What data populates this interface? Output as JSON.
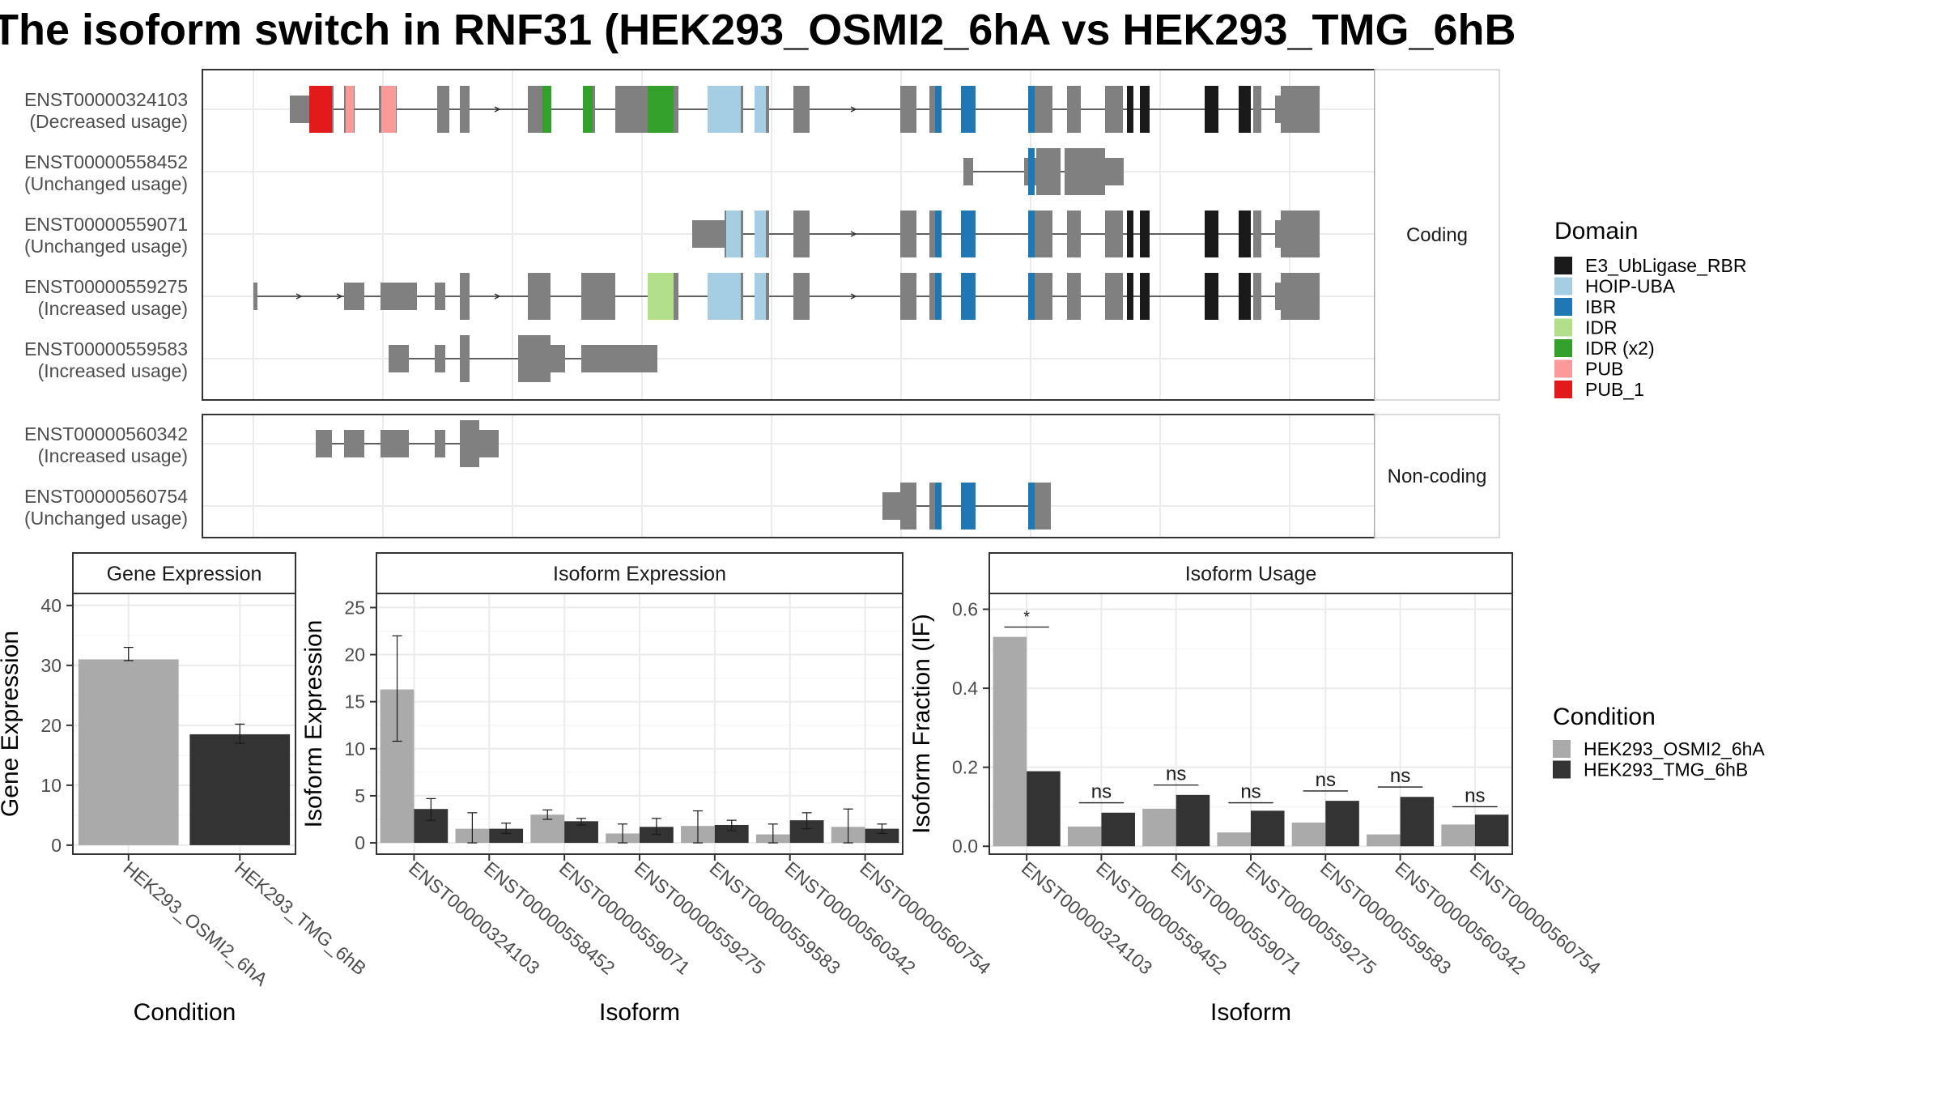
{
  "title": "The isoform switch in RNF31 (HEK293_OSMI2_6hA vs HEK293_TMG_6hB",
  "structure": {
    "groups": [
      "Coding",
      "Non-coding"
    ],
    "transcripts": [
      {
        "id": "ENST00000324103",
        "usage": "(Decreased usage)",
        "group": "Coding"
      },
      {
        "id": "ENST00000558452",
        "usage": "(Unchanged usage)",
        "group": "Coding"
      },
      {
        "id": "ENST00000559071",
        "usage": "(Unchanged usage)",
        "group": "Coding"
      },
      {
        "id": "ENST00000559275",
        "usage": "(Increased usage)",
        "group": "Coding"
      },
      {
        "id": "ENST00000559583",
        "usage": "(Increased usage)",
        "group": "Coding"
      },
      {
        "id": "ENST00000560342",
        "usage": "(Increased usage)",
        "group": "Non-coding"
      },
      {
        "id": "ENST00000560754",
        "usage": "(Unchanged usage)",
        "group": "Non-coding"
      }
    ]
  },
  "legend_domain": {
    "title": "Domain",
    "items": [
      {
        "label": "E3_UbLigase_RBR",
        "color": "#1a1a1a"
      },
      {
        "label": "HOIP-UBA",
        "color": "#a6cee3"
      },
      {
        "label": "IBR",
        "color": "#1f78b4"
      },
      {
        "label": "IDR",
        "color": "#b2df8a"
      },
      {
        "label": "IDR (x2)",
        "color": "#33a02c"
      },
      {
        "label": "PUB",
        "color": "#fb9a99"
      },
      {
        "label": "PUB_1",
        "color": "#e31a1c"
      }
    ]
  },
  "legend_condition": {
    "title": "Condition",
    "items": [
      {
        "label": "HEK293_OSMI2_6hA",
        "color": "#aaaaaa"
      },
      {
        "label": "HEK293_TMG_6hB",
        "color": "#333333"
      }
    ]
  },
  "colors": {
    "exon": "#808080",
    "cond_a": "#aaaaaa",
    "cond_b": "#333333"
  },
  "chart_data": [
    {
      "type": "bar",
      "title": "Gene Expression",
      "xlabel": "Condition",
      "ylabel": "Gene Expression",
      "ylim": [
        -1.5,
        42
      ],
      "yticks": [
        0,
        10,
        20,
        30,
        40
      ],
      "categories": [
        "HEK293_OSMI2_6hA",
        "HEK293_TMG_6hB"
      ],
      "values": [
        31.0,
        18.5
      ],
      "errors": [
        [
          30.8,
          33.0
        ],
        [
          17.0,
          20.2
        ]
      ]
    },
    {
      "type": "bar",
      "title": "Isoform Expression",
      "xlabel": "Isoform",
      "ylabel": "Isoform Expression",
      "ylim": [
        -1.2,
        26.5
      ],
      "yticks": [
        0,
        5,
        10,
        15,
        20,
        25
      ],
      "categories": [
        "ENST00000324103",
        "ENST00000558452",
        "ENST00000559071",
        "ENST00000559275",
        "ENST00000559583",
        "ENST00000560342",
        "ENST00000560754"
      ],
      "series": [
        {
          "name": "HEK293_OSMI2_6hA",
          "values": [
            16.3,
            1.5,
            3.0,
            1.0,
            1.8,
            0.9,
            1.7
          ],
          "errors": [
            [
              10.8,
              22.0
            ],
            [
              0,
              3.2
            ],
            [
              2.5,
              3.5
            ],
            [
              0,
              2.0
            ],
            [
              0,
              3.4
            ],
            [
              0,
              2.0
            ],
            [
              0,
              3.6
            ]
          ]
        },
        {
          "name": "HEK293_TMG_6hB",
          "values": [
            3.6,
            1.5,
            2.3,
            1.7,
            1.9,
            2.4,
            1.5
          ],
          "errors": [
            [
              2.4,
              4.7
            ],
            [
              1.0,
              2.1
            ],
            [
              1.9,
              2.6
            ],
            [
              0.9,
              2.6
            ],
            [
              1.3,
              2.4
            ],
            [
              1.5,
              3.2
            ],
            [
              1.0,
              2.0
            ]
          ]
        }
      ]
    },
    {
      "type": "bar",
      "title": "Isoform Usage",
      "xlabel": "Isoform",
      "ylabel": "Isoform Fraction (IF)",
      "ylim": [
        -0.02,
        0.64
      ],
      "yticks": [
        0.0,
        0.2,
        0.4,
        0.6
      ],
      "categories": [
        "ENST00000324103",
        "ENST00000558452",
        "ENST00000559071",
        "ENST00000559275",
        "ENST00000559583",
        "ENST00000560342",
        "ENST00000560754"
      ],
      "series": [
        {
          "name": "HEK293_OSMI2_6hA",
          "values": [
            0.53,
            0.05,
            0.095,
            0.035,
            0.06,
            0.03,
            0.055
          ]
        },
        {
          "name": "HEK293_TMG_6hB",
          "values": [
            0.19,
            0.085,
            0.13,
            0.09,
            0.115,
            0.125,
            0.08
          ]
        }
      ],
      "significance": [
        "*",
        "ns",
        "ns",
        "ns",
        "ns",
        "ns",
        "ns"
      ],
      "sig_y": [
        0.555,
        0.11,
        0.155,
        0.11,
        0.14,
        0.15,
        0.1
      ]
    }
  ]
}
